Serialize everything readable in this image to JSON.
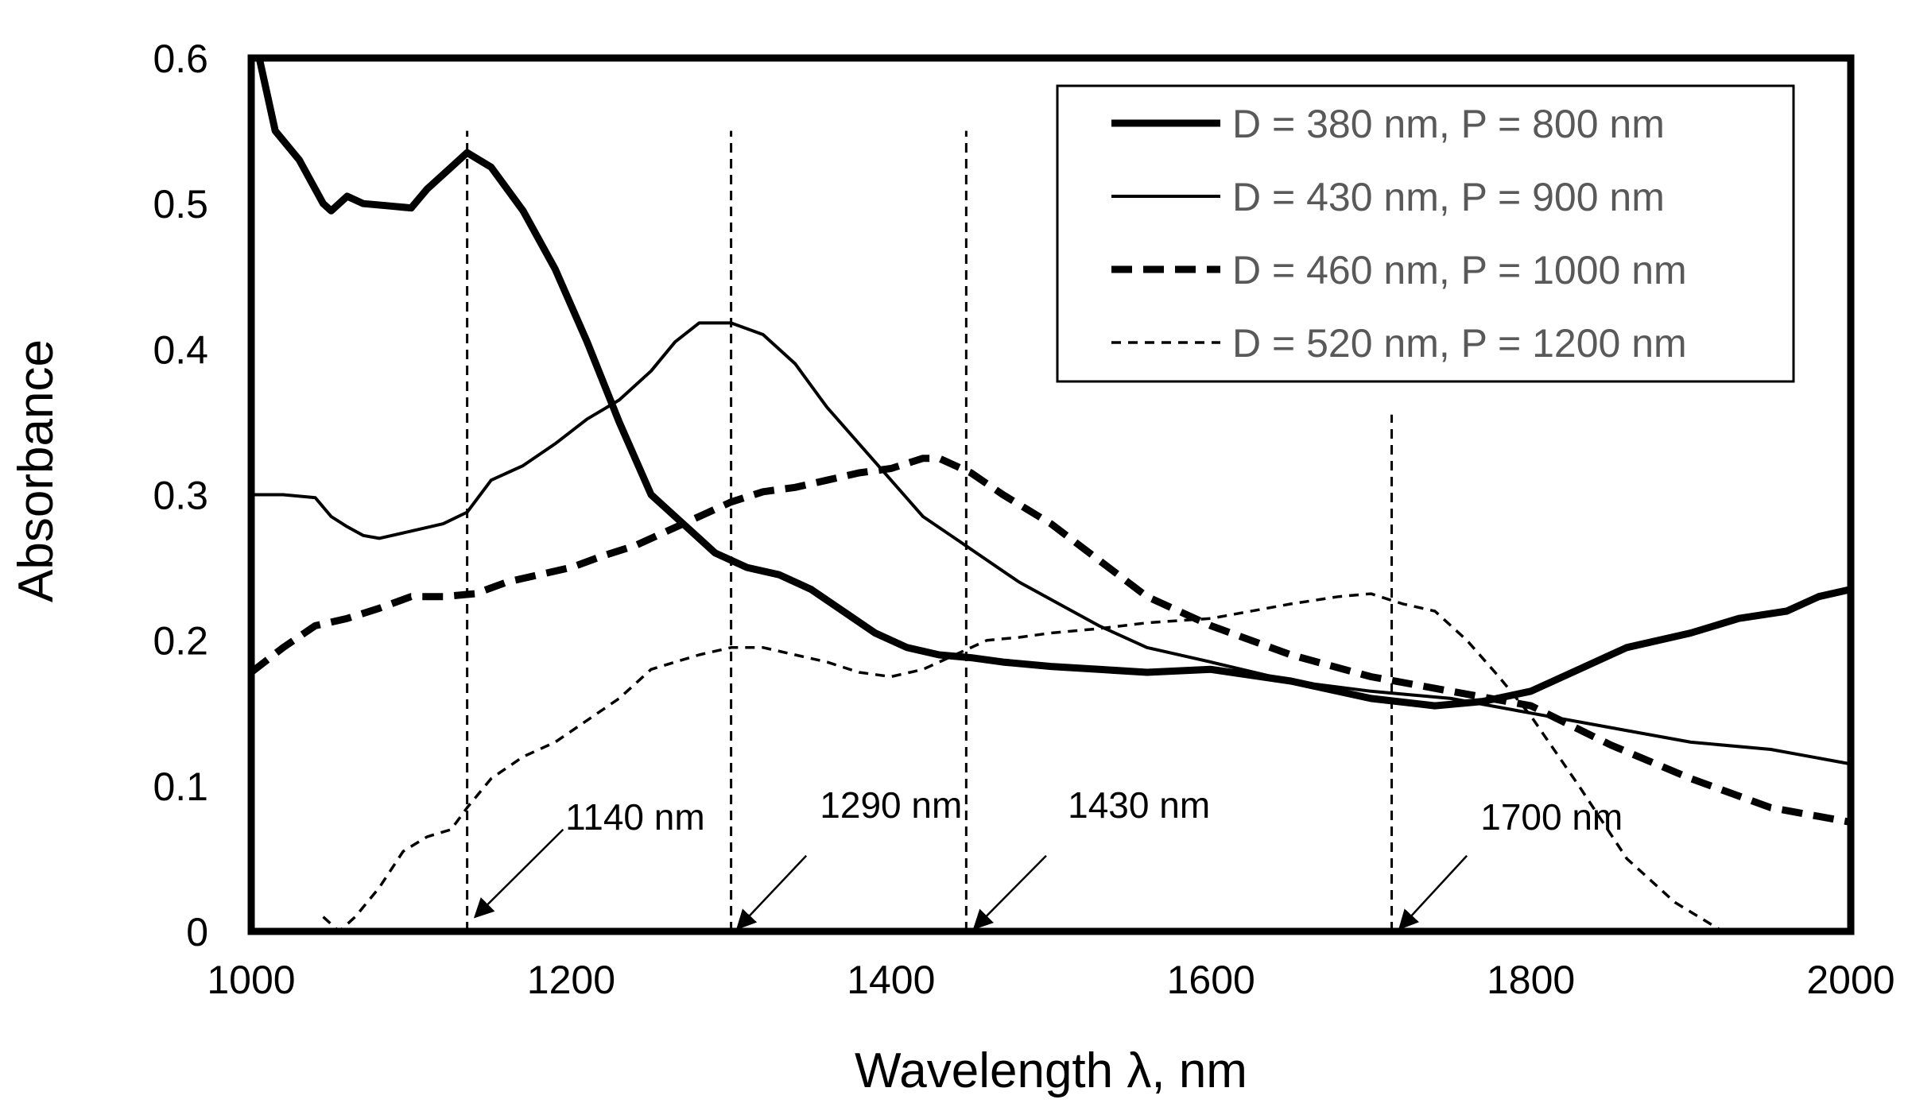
{
  "chart_data": {
    "type": "line",
    "title": "",
    "xlabel": "Wavelength λ,  nm",
    "ylabel": "Absorbance",
    "xlim": [
      1000,
      2000
    ],
    "ylim": [
      0,
      0.6
    ],
    "xticks": [
      1000,
      1200,
      1400,
      1600,
      1800,
      2000
    ],
    "xtick_labels": [
      "1000",
      "1200",
      "1400",
      "1600",
      "1800",
      "2000"
    ],
    "yticks": [
      0,
      0.1,
      0.2,
      0.3,
      0.4,
      0.5,
      0.6
    ],
    "ytick_labels": [
      "0",
      "0.1",
      "0.2",
      "0.3",
      "0.4",
      "0.5",
      "0.6"
    ],
    "grid": false,
    "legend_position": "top-right",
    "series": [
      {
        "name": "D = 380 nm, P = 800 nm",
        "style": "thick-solid",
        "color": "#000000",
        "x": [
          1005,
          1015,
          1030,
          1045,
          1050,
          1060,
          1070,
          1090,
          1100,
          1110,
          1125,
          1135,
          1150,
          1170,
          1190,
          1210,
          1230,
          1250,
          1270,
          1290,
          1310,
          1330,
          1350,
          1370,
          1390,
          1410,
          1430,
          1450,
          1470,
          1500,
          1530,
          1560,
          1600,
          1650,
          1700,
          1740,
          1770,
          1800,
          1830,
          1860,
          1900,
          1930,
          1960,
          1980,
          2000
        ],
        "y": [
          0.6,
          0.55,
          0.53,
          0.5,
          0.495,
          0.505,
          0.5,
          0.498,
          0.497,
          0.51,
          0.525,
          0.535,
          0.525,
          0.495,
          0.455,
          0.405,
          0.35,
          0.3,
          0.28,
          0.26,
          0.25,
          0.245,
          0.235,
          0.22,
          0.205,
          0.195,
          0.19,
          0.188,
          0.185,
          0.182,
          0.18,
          0.178,
          0.18,
          0.172,
          0.16,
          0.155,
          0.158,
          0.165,
          0.18,
          0.195,
          0.205,
          0.215,
          0.22,
          0.23,
          0.235
        ]
      },
      {
        "name": "D = 430 nm, P = 900 nm",
        "style": "thin-solid",
        "color": "#000000",
        "x": [
          1000,
          1020,
          1040,
          1050,
          1060,
          1070,
          1080,
          1100,
          1120,
          1135,
          1150,
          1170,
          1190,
          1210,
          1230,
          1250,
          1265,
          1280,
          1300,
          1320,
          1340,
          1360,
          1380,
          1400,
          1420,
          1440,
          1460,
          1480,
          1500,
          1530,
          1560,
          1600,
          1650,
          1700,
          1750,
          1800,
          1850,
          1900,
          1950,
          2000
        ],
        "y": [
          0.3,
          0.3,
          0.298,
          0.285,
          0.278,
          0.272,
          0.27,
          0.275,
          0.28,
          0.288,
          0.31,
          0.32,
          0.335,
          0.352,
          0.365,
          0.385,
          0.405,
          0.418,
          0.418,
          0.41,
          0.39,
          0.36,
          0.335,
          0.31,
          0.285,
          0.27,
          0.255,
          0.24,
          0.228,
          0.21,
          0.195,
          0.185,
          0.172,
          0.165,
          0.16,
          0.15,
          0.14,
          0.13,
          0.125,
          0.115
        ]
      },
      {
        "name": "D = 460 nm, P = 1000 nm",
        "style": "thick-dashed",
        "color": "#000000",
        "x": [
          1000,
          1020,
          1040,
          1060,
          1080,
          1100,
          1120,
          1140,
          1160,
          1180,
          1200,
          1220,
          1240,
          1260,
          1280,
          1300,
          1320,
          1340,
          1360,
          1380,
          1400,
          1420,
          1430,
          1450,
          1470,
          1500,
          1530,
          1560,
          1600,
          1650,
          1700,
          1750,
          1800,
          1850,
          1900,
          1950,
          2000
        ],
        "y": [
          0.178,
          0.195,
          0.21,
          0.215,
          0.222,
          0.23,
          0.23,
          0.232,
          0.24,
          0.245,
          0.25,
          0.258,
          0.265,
          0.275,
          0.285,
          0.295,
          0.302,
          0.305,
          0.31,
          0.315,
          0.318,
          0.325,
          0.325,
          0.315,
          0.3,
          0.28,
          0.255,
          0.23,
          0.21,
          0.19,
          0.175,
          0.165,
          0.155,
          0.128,
          0.105,
          0.085,
          0.075
        ]
      },
      {
        "name": "D = 520 nm, P = 1200 nm",
        "style": "thin-dashed",
        "color": "#000000",
        "x": [
          1045,
          1055,
          1065,
          1080,
          1095,
          1110,
          1125,
          1135,
          1150,
          1170,
          1190,
          1210,
          1230,
          1250,
          1265,
          1280,
          1300,
          1320,
          1340,
          1360,
          1380,
          1400,
          1420,
          1440,
          1460,
          1480,
          1500,
          1530,
          1560,
          1600,
          1650,
          1680,
          1700,
          1720,
          1740,
          1760,
          1780,
          1800,
          1830,
          1860,
          1890,
          1920
        ],
        "y": [
          0.01,
          0.0,
          0.01,
          0.03,
          0.055,
          0.065,
          0.07,
          0.085,
          0.105,
          0.12,
          0.13,
          0.145,
          0.16,
          0.18,
          0.185,
          0.19,
          0.195,
          0.195,
          0.19,
          0.185,
          0.178,
          0.175,
          0.18,
          0.19,
          0.2,
          0.202,
          0.205,
          0.208,
          0.212,
          0.215,
          0.225,
          0.23,
          0.232,
          0.225,
          0.22,
          0.2,
          0.175,
          0.148,
          0.1,
          0.05,
          0.02,
          0.0
        ]
      }
    ],
    "reference_lines": [
      {
        "x": 1135,
        "ymax": 0.55,
        "label": "1140 nm",
        "label_x": 1240,
        "label_y": 0.07,
        "arrow_from": [
          1195,
          0.07
        ],
        "arrow_to": [
          1140,
          0.01
        ]
      },
      {
        "x": 1300,
        "ymax": 0.55,
        "label": "1290 nm",
        "label_x": 1400,
        "label_y": 0.078,
        "arrow_from": [
          1347,
          0.052
        ],
        "arrow_to": [
          1304,
          0.002
        ]
      },
      {
        "x": 1447,
        "ymax": 0.55,
        "label": "1430 nm",
        "label_x": 1555,
        "label_y": 0.078,
        "arrow_from": [
          1497,
          0.052
        ],
        "arrow_to": [
          1452,
          0.002
        ]
      },
      {
        "x": 1713,
        "ymax": 0.355,
        "label": "1700 nm",
        "label_x": 1813,
        "label_y": 0.07,
        "arrow_from": [
          1760,
          0.052
        ],
        "arrow_to": [
          1718,
          0.002
        ]
      }
    ]
  }
}
